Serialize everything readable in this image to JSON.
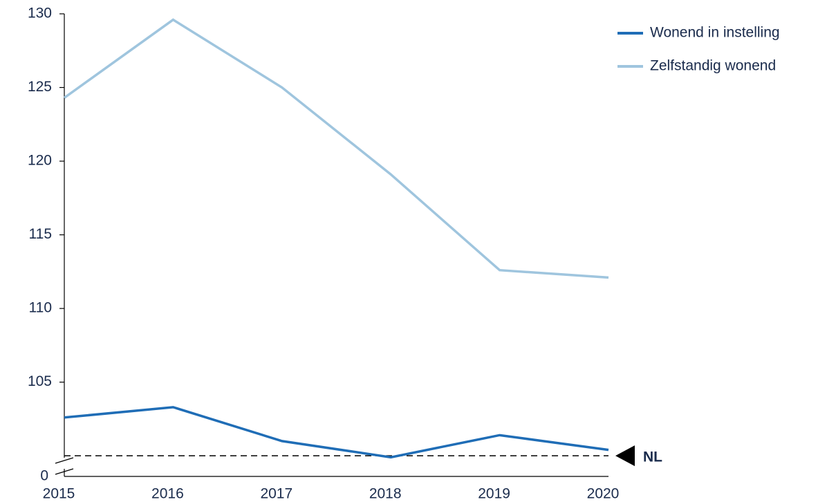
{
  "chart_data": {
    "type": "line",
    "categories": [
      "2015",
      "2016",
      "2017",
      "2018",
      "2019",
      "2020"
    ],
    "series": [
      {
        "name": "Wonend in instelling",
        "color": "#1f6db6",
        "values": [
          102.6,
          103.3,
          101.0,
          99.9,
          101.4,
          100.4
        ]
      },
      {
        "name": "Zelfstandig wonend",
        "color": "#9fc5de",
        "values": [
          124.3,
          129.6,
          125.0,
          119.1,
          112.6,
          112.1
        ]
      }
    ],
    "ylim": [
      98.6,
      130
    ],
    "yticks": [
      105,
      110,
      115,
      120,
      125,
      130
    ],
    "y_axis_break_label": "0",
    "reference_line": {
      "value": 100,
      "label": "NL"
    },
    "legend": "top-right",
    "grid": false
  }
}
